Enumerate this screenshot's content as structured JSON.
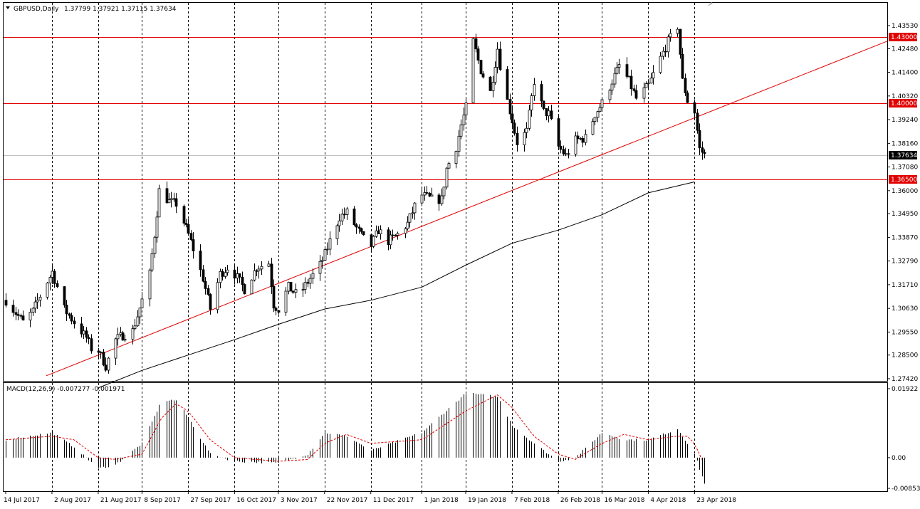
{
  "chart_data": {
    "type": "candlestick",
    "title": "GBPUSD,Daily",
    "ohlc_header": [
      "1.37799",
      "1.37921",
      "1.37115",
      "1.37634"
    ],
    "price_axis": {
      "range": [
        1.2742,
        1.4353
      ],
      "ticks": [
        "1.43530",
        "1.42480",
        "1.41400",
        "1.40320",
        "1.39240",
        "1.38160",
        "1.37080",
        "1.36000",
        "1.34950",
        "1.33870",
        "1.32790",
        "1.31710",
        "1.30630",
        "1.29550",
        "1.28500",
        "1.27420"
      ]
    },
    "horizontal_levels": [
      {
        "value": 1.43,
        "label": "1.43000",
        "color": "#e00000"
      },
      {
        "value": 1.4,
        "label": "1.40000",
        "color": "#e00000"
      },
      {
        "value": 1.365,
        "label": "1.36500",
        "color": "#e00000"
      }
    ],
    "current_price": {
      "value": 1.37634,
      "label": "1.37634",
      "color": "#000000"
    },
    "trendline": {
      "start": [
        "14 Jul 2017",
        1.2682
      ],
      "end": [
        "27 Apr 2018",
        1.395
      ],
      "color": "#e00000"
    },
    "moving_average": {
      "color": "#000000",
      "points": [
        [
          "21 Aug 2017",
          1.27
        ],
        [
          "8 Sep 2017",
          1.278
        ],
        [
          "27 Sep 2017",
          1.285
        ],
        [
          "16 Oct 2017",
          1.292
        ],
        [
          "3 Nov 2017",
          1.299
        ],
        [
          "22 Nov 2017",
          1.306
        ],
        [
          "11 Dec 2017",
          1.31
        ],
        [
          "1 Jan 2018",
          1.316
        ],
        [
          "19 Jan 2018",
          1.326
        ],
        [
          "7 Feb 2018",
          1.336
        ],
        [
          "26 Feb 2018",
          1.342
        ],
        [
          "16 Mar 2018",
          1.349
        ],
        [
          "4 Apr 2018",
          1.359
        ],
        [
          "23 Apr 2018",
          1.364
        ]
      ]
    },
    "date_labels": [
      "14 Jul 2017",
      "2 Aug 2017",
      "21 Aug 2017",
      "8 Sep 2017",
      "27 Sep 2017",
      "16 Oct 2017",
      "3 Nov 2017",
      "22 Nov 2017",
      "11 Dec 2017",
      "1 Jan 2018",
      "19 Jan 2018",
      "7 Feb 2018",
      "26 Feb 2018",
      "16 Mar 2018",
      "4 Apr 2018",
      "23 Apr 2018"
    ],
    "vertical_grid_dates": [
      "2 Aug 2017",
      "21 Aug 2017",
      "8 Sep 2017",
      "27 Sep 2017",
      "16 Oct 2017",
      "3 Nov 2017",
      "22 Nov 2017",
      "11 Dec 2017",
      "1 Jan 2018",
      "19 Jan 2018",
      "7 Feb 2018",
      "26 Feb 2018",
      "16 Mar 2018",
      "4 Apr 2018",
      "23 Apr 2018"
    ],
    "price_path": [
      [
        "14 Jul 2017",
        1.31
      ],
      [
        "21 Jul 2017",
        1.3
      ],
      [
        "25 Jul 2017",
        1.305
      ],
      [
        "28 Jul 2017",
        1.312
      ],
      [
        "2 Aug 2017",
        1.323
      ],
      [
        "7 Aug 2017",
        1.306
      ],
      [
        "11 Aug 2017",
        1.3
      ],
      [
        "16 Aug 2017",
        1.293
      ],
      [
        "18 Aug 2017",
        1.288
      ],
      [
        "21 Aug 2017",
        1.287
      ],
      [
        "24 Aug 2017",
        1.28
      ],
      [
        "28 Aug 2017",
        1.292
      ],
      [
        "31 Aug 2017",
        1.294
      ],
      [
        "4 Sep 2017",
        1.296
      ],
      [
        "8 Sep 2017",
        1.31
      ],
      [
        "11 Sep 2017",
        1.322
      ],
      [
        "13 Sep 2017",
        1.34
      ],
      [
        "15 Sep 2017",
        1.36
      ],
      [
        "19 Sep 2017",
        1.355
      ],
      [
        "22 Sep 2017",
        1.354
      ],
      [
        "27 Sep 2017",
        1.34
      ],
      [
        "30 Sep 2017",
        1.33
      ],
      [
        "3 Oct 2017",
        1.32
      ],
      [
        "6 Oct 2017",
        1.306
      ],
      [
        "10 Oct 2017",
        1.322
      ],
      [
        "13 Oct 2017",
        1.325
      ],
      [
        "16 Oct 2017",
        1.322
      ],
      [
        "20 Oct 2017",
        1.315
      ],
      [
        "25 Oct 2017",
        1.325
      ],
      [
        "30 Oct 2017",
        1.327
      ],
      [
        "1 Nov 2017",
        1.308
      ],
      [
        "3 Nov 2017",
        1.306
      ],
      [
        "7 Nov 2017",
        1.316
      ],
      [
        "11 Nov 2017",
        1.312
      ],
      [
        "16 Nov 2017",
        1.32
      ],
      [
        "20 Nov 2017",
        1.326
      ],
      [
        "22 Nov 2017",
        1.331
      ],
      [
        "25 Nov 2017",
        1.34
      ],
      [
        "28 Nov 2017",
        1.348
      ],
      [
        "1 Dec 2017",
        1.35
      ],
      [
        "5 Dec 2017",
        1.343
      ],
      [
        "8 Dec 2017",
        1.338
      ],
      [
        "11 Dec 2017",
        1.335
      ],
      [
        "14 Dec 2017",
        1.342
      ],
      [
        "18 Dec 2017",
        1.337
      ],
      [
        "22 Dec 2017",
        1.34
      ],
      [
        "26 Dec 2017",
        1.345
      ],
      [
        "29 Dec 2017",
        1.353
      ],
      [
        "1 Jan 2018",
        1.358
      ],
      [
        "5 Jan 2018",
        1.356
      ],
      [
        "9 Jan 2018",
        1.356
      ],
      [
        "11 Jan 2018",
        1.37
      ],
      [
        "15 Jan 2018",
        1.38
      ],
      [
        "17 Jan 2018",
        1.39
      ],
      [
        "19 Jan 2018",
        1.398
      ],
      [
        "22 Jan 2018",
        1.428
      ],
      [
        "25 Jan 2018",
        1.415
      ],
      [
        "29 Jan 2018",
        1.405
      ],
      [
        "1 Feb 2018",
        1.425
      ],
      [
        "3 Feb 2018",
        1.41
      ],
      [
        "7 Feb 2018",
        1.392
      ],
      [
        "9 Feb 2018",
        1.382
      ],
      [
        "13 Feb 2018",
        1.387
      ],
      [
        "16 Feb 2018",
        1.41
      ],
      [
        "20 Feb 2018",
        1.396
      ],
      [
        "22 Feb 2018",
        1.395
      ],
      [
        "26 Feb 2018",
        1.38
      ],
      [
        "1 Mar 2018",
        1.376
      ],
      [
        "5 Mar 2018",
        1.383
      ],
      [
        "9 Mar 2018",
        1.384
      ],
      [
        "13 Mar 2018",
        1.395
      ],
      [
        "16 Mar 2018",
        1.4
      ],
      [
        "20 Mar 2018",
        1.41
      ],
      [
        "23 Mar 2018",
        1.417
      ],
      [
        "27 Mar 2018",
        1.41
      ],
      [
        "30 Mar 2018",
        1.402
      ],
      [
        "4 Apr 2018",
        1.408
      ],
      [
        "8 Apr 2018",
        1.418
      ],
      [
        "12 Apr 2018",
        1.428
      ],
      [
        "16 Apr 2018",
        1.435
      ],
      [
        "18 Apr 2018",
        1.41
      ],
      [
        "20 Apr 2018",
        1.401
      ],
      [
        "23 Apr 2018",
        1.396
      ],
      [
        "25 Apr 2018",
        1.379
      ],
      [
        "27 Apr 2018",
        1.3763
      ]
    ]
  },
  "macd": {
    "label": "MACD(12,26,9) -0.007277 -0.001971",
    "range": [
      -0.008539,
      0.01922
    ],
    "ticks": [
      "0.01922",
      "0.00",
      "-0.008539"
    ],
    "signal_color": "#e00000",
    "histogram_color": "#000000",
    "path": [
      [
        "14 Jul 2017",
        0.005
      ],
      [
        "2 Aug 2017",
        0.007
      ],
      [
        "11 Aug 2017",
        0.003
      ],
      [
        "21 Aug 2017",
        -0.003
      ],
      [
        "28 Aug 2017",
        -0.002
      ],
      [
        "8 Sep 2017",
        0.004
      ],
      [
        "16 Sep 2017",
        0.016
      ],
      [
        "22 Sep 2017",
        0.016
      ],
      [
        "27 Sep 2017",
        0.011
      ],
      [
        "6 Oct 2017",
        0.001
      ],
      [
        "16 Oct 2017",
        -0.001
      ],
      [
        "3 Nov 2017",
        -0.0015
      ],
      [
        "15 Nov 2017",
        0.001
      ],
      [
        "22 Nov 2017",
        0.007
      ],
      [
        "1 Dec 2017",
        0.006
      ],
      [
        "11 Dec 2017",
        0.002
      ],
      [
        "1 Jan 2018",
        0.007
      ],
      [
        "19 Jan 2018",
        0.018
      ],
      [
        "1 Feb 2018",
        0.017
      ],
      [
        "7 Feb 2018",
        0.009
      ],
      [
        "16 Feb 2018",
        0.004
      ],
      [
        "26 Feb 2018",
        -0.001
      ],
      [
        "5 Mar 2018",
        0.0
      ],
      [
        "16 Mar 2018",
        0.007
      ],
      [
        "25 Mar 2018",
        0.005
      ],
      [
        "4 Apr 2018",
        0.005
      ],
      [
        "16 Apr 2018",
        0.008
      ],
      [
        "20 Apr 2018",
        0.004
      ],
      [
        "23 Apr 2018",
        0.001
      ],
      [
        "27 Apr 2018",
        -0.0073
      ]
    ],
    "signal_path": [
      [
        "14 Jul 2017",
        0.005
      ],
      [
        "2 Aug 2017",
        0.006
      ],
      [
        "11 Aug 2017",
        0.005
      ],
      [
        "21 Aug 2017",
        0.0
      ],
      [
        "28 Aug 2017",
        -0.0005
      ],
      [
        "8 Sep 2017",
        0.001
      ],
      [
        "16 Sep 2017",
        0.011
      ],
      [
        "22 Sep 2017",
        0.015
      ],
      [
        "27 Sep 2017",
        0.013
      ],
      [
        "6 Oct 2017",
        0.005
      ],
      [
        "16 Oct 2017",
        0.0
      ],
      [
        "3 Nov 2017",
        -0.001
      ],
      [
        "15 Nov 2017",
        -0.0005
      ],
      [
        "22 Nov 2017",
        0.004
      ],
      [
        "1 Dec 2017",
        0.0065
      ],
      [
        "11 Dec 2017",
        0.004
      ],
      [
        "1 Jan 2018",
        0.005
      ],
      [
        "19 Jan 2018",
        0.013
      ],
      [
        "1 Feb 2018",
        0.0175
      ],
      [
        "7 Feb 2018",
        0.014
      ],
      [
        "16 Feb 2018",
        0.006
      ],
      [
        "26 Feb 2018",
        0.001
      ],
      [
        "5 Mar 2018",
        -0.0005
      ],
      [
        "16 Mar 2018",
        0.004
      ],
      [
        "25 Mar 2018",
        0.0065
      ],
      [
        "4 Apr 2018",
        0.005
      ],
      [
        "16 Apr 2018",
        0.006
      ],
      [
        "20 Apr 2018",
        0.006
      ],
      [
        "23 Apr 2018",
        0.004
      ],
      [
        "27 Apr 2018",
        -0.002
      ]
    ]
  },
  "colors": {
    "background": "#ffffff",
    "grid": "#000000",
    "level_lines": "#e00000",
    "price_tag": "#000000",
    "candles": "#000000",
    "bull_fill": "#ffffff",
    "bear_fill": "#000000"
  }
}
